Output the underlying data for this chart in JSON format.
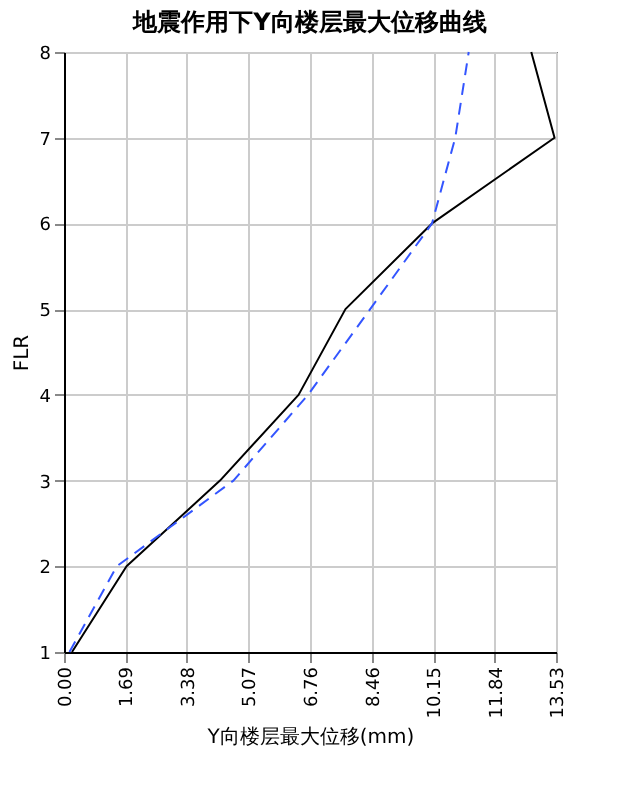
{
  "chart_data": {
    "type": "line",
    "title": "地震作用下Y向楼层最大位移曲线",
    "xlabel": "Y向楼层最大位移(mm)",
    "ylabel": "FLR",
    "series": [
      {
        "color": "#000000",
        "line_style": "solid",
        "x": [
          0.22,
          1.72,
          4.29,
          6.45,
          7.74,
          10.12,
          13.49,
          12.85
        ],
        "values": [
          1,
          2,
          3,
          4,
          5,
          6,
          7,
          8
        ]
      },
      {
        "color": "#3355ff",
        "line_style": "dashed",
        "x": [
          0.15,
          1.45,
          4.66,
          6.71,
          8.42,
          10.12,
          10.76,
          11.13
        ],
        "values": [
          1,
          2,
          3,
          4,
          5,
          6,
          7,
          8
        ]
      }
    ],
    "xlim": [
      0,
      13.53
    ],
    "xticks": [
      {
        "value": 0,
        "label": "0.00"
      },
      1.69,
      3.38,
      5.07,
      6.76,
      8.46,
      10.15,
      11.84,
      13.53
    ],
    "ylim": [
      1,
      8
    ],
    "yticks": [
      1,
      2,
      3,
      4,
      5,
      6,
      7,
      8
    ],
    "grid": true,
    "marker": "none"
  }
}
